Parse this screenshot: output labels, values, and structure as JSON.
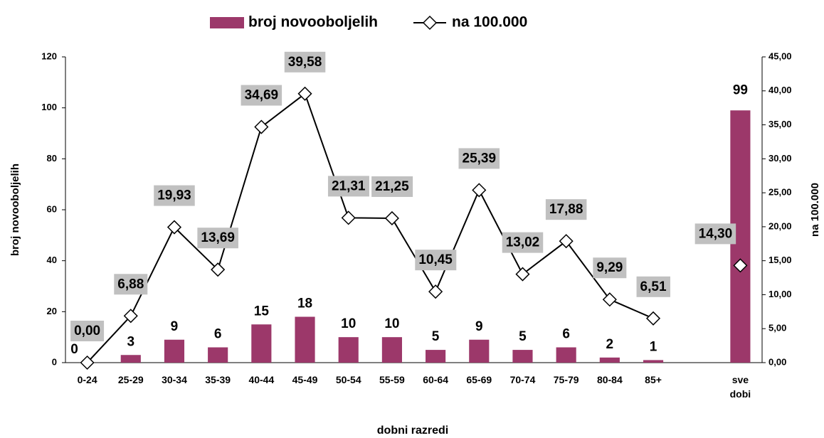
{
  "chart_data": {
    "type": "bar_line",
    "legend": "top",
    "x_label": "dobni razredi",
    "y_label": "broj novooboljelih",
    "y2_label": "na 100.000",
    "categories": [
      "0-24",
      "25-29",
      "30-34",
      "35-39",
      "40-44",
      "45-49",
      "50-54",
      "55-59",
      "60-64",
      "65-69",
      "70-74",
      "75-79",
      "80-84",
      "85+",
      null,
      "sve dobi"
    ],
    "series": [
      {
        "name": "broj novooboljelih",
        "type": "bar",
        "color": "#9c386a",
        "values": [
          0,
          3,
          9,
          6,
          15,
          18,
          10,
          10,
          5,
          9,
          5,
          6,
          2,
          1,
          null,
          99
        ]
      },
      {
        "name": "na 100.000",
        "type": "line",
        "axis": "y2",
        "color": "#000000",
        "values": [
          0.0,
          6.88,
          19.93,
          13.69,
          34.69,
          39.58,
          21.31,
          21.25,
          10.45,
          25.39,
          13.02,
          17.88,
          9.29,
          6.51,
          null,
          14.3
        ],
        "value_labels": [
          "0,00",
          "6,88",
          "19,93",
          "13,69",
          "34,69",
          "39,58",
          "21,31",
          "21,25",
          "10,45",
          "25,39",
          "13,02",
          "17,88",
          "9,29",
          "6,51",
          null,
          "14,30"
        ]
      }
    ],
    "ylim": [
      0,
      120
    ],
    "yticks": [
      0,
      20,
      40,
      60,
      80,
      100,
      120
    ],
    "y2lim": [
      0,
      45
    ],
    "y2ticks": [
      {
        "value": 0,
        "label": "0,00"
      },
      {
        "value": 5,
        "label": "5,00"
      },
      {
        "value": 10,
        "label": "10,00"
      },
      {
        "value": 15,
        "label": "15,00"
      },
      {
        "value": 20,
        "label": "20,00"
      },
      {
        "value": 25,
        "label": "25,00"
      },
      {
        "value": 30,
        "label": "30,00"
      },
      {
        "value": 35,
        "label": "35,00"
      },
      {
        "value": 40,
        "label": "40,00"
      },
      {
        "value": 45,
        "label": "45,00"
      }
    ]
  }
}
